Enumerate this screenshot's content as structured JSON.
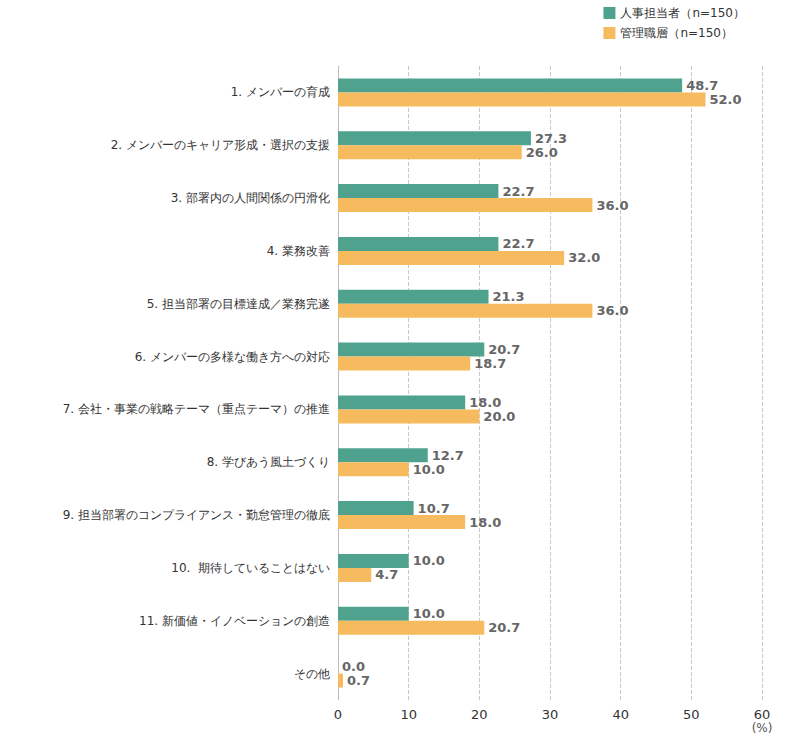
{
  "chart_data": {
    "type": "bar",
    "orientation": "horizontal",
    "categories": [
      "1. メンバーの育成",
      "2. メンバーのキャリア形成・選択の支援",
      "3. 部署内の人間関係の円滑化",
      "4. 業務改善",
      "5. 担当部署の目標達成／業務完遂",
      "6. メンバーの多様な働き方への対応",
      "7. 会社・事業の戦略テーマ（重点テーマ）の推進",
      "8. 学びあう風土づくり",
      "9. 担当部署のコンプライアンス・勤怠管理の徹底",
      "10.  期待していることはない",
      "11. 新価値・イノベーションの創造",
      "その他"
    ],
    "series": [
      {
        "name": "人事担当者（n=150）",
        "color": "#4fa38e",
        "values": [
          48.7,
          27.3,
          22.7,
          22.7,
          21.3,
          20.7,
          18.0,
          12.7,
          10.7,
          10.0,
          10.0,
          0.0
        ],
        "value_labels": [
          "48.7",
          "27.3",
          "22.7",
          "22.7",
          "21.3",
          "20.7",
          "18.0",
          "12.7",
          "10.7",
          "10.0",
          "10.0",
          "0.0"
        ]
      },
      {
        "name": "管理職層（n=150）",
        "color": "#f5bb5e",
        "values": [
          52.0,
          26.0,
          36.0,
          32.0,
          36.0,
          18.7,
          20.0,
          10.0,
          18.0,
          4.7,
          20.7,
          0.7
        ],
        "value_labels": [
          "52.0",
          "26.0",
          "36.0",
          "32.0",
          "36.0",
          "18.7",
          "20.0",
          "10.0",
          "18.0",
          "4.7",
          "20.7",
          "0.7"
        ]
      }
    ],
    "x_label": "(%)",
    "xlim": [
      0,
      60
    ],
    "xticks": [
      0,
      10,
      20,
      30,
      40,
      50,
      60
    ],
    "grid": true,
    "legend": "top-right",
    "data_labels": true
  }
}
